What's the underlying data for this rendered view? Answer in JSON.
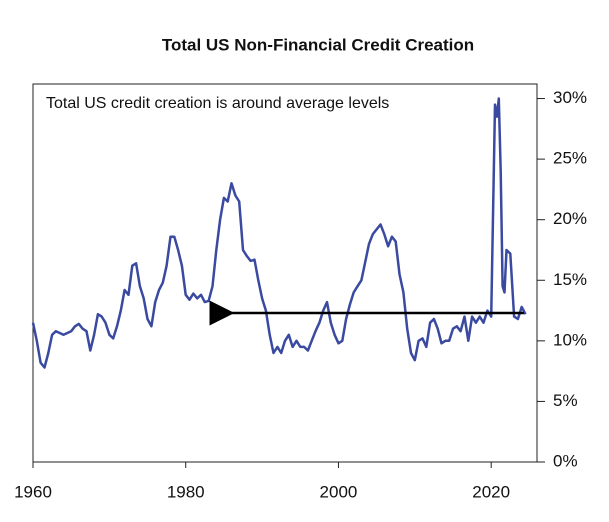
{
  "chart_data": {
    "type": "line",
    "title": "Total US Non-Financial Credit Creation",
    "annotation": "Total US credit creation is around average levels",
    "xlim": [
      1960,
      2026
    ],
    "xticks": [
      1960,
      1980,
      2000,
      2020
    ],
    "ylim": [
      0,
      31.2
    ],
    "yticks": [
      {
        "value": 0,
        "label": "0%"
      },
      {
        "value": 5,
        "label": "5%"
      },
      {
        "value": 10,
        "label": "10%"
      },
      {
        "value": 15,
        "label": "15%"
      },
      {
        "value": 20,
        "label": "20%"
      },
      {
        "value": 25,
        "label": "25%"
      },
      {
        "value": 30,
        "label": "30%"
      }
    ],
    "color": "#3a4aa0",
    "x": [
      1960,
      1960.5,
      1961,
      1961.5,
      1962,
      1962.5,
      1963,
      1964,
      1965,
      1965.5,
      1966,
      1966.5,
      1967,
      1967.5,
      1968,
      1968.5,
      1969,
      1969.5,
      1970,
      1970.5,
      1971,
      1971.5,
      1972,
      1972.5,
      1973,
      1973.5,
      1974,
      1974.5,
      1975,
      1975.5,
      1976,
      1976.5,
      1977,
      1977.5,
      1978,
      1978.5,
      1979,
      1979.5,
      1980,
      1980.5,
      1981,
      1981.5,
      1982,
      1982.5,
      1983,
      1983.5,
      1984,
      1984.5,
      1985,
      1985.5,
      1986,
      1986.5,
      1987,
      1987.5,
      1988,
      1988.5,
      1989,
      1989.5,
      1990,
      1990.5,
      1991,
      1991.5,
      1992,
      1992.5,
      1993,
      1993.5,
      1994,
      1994.5,
      1995,
      1995.5,
      1996,
      1996.5,
      1997,
      1997.5,
      1998,
      1998.5,
      1999,
      1999.5,
      2000,
      2000.5,
      2001,
      2001.5,
      2002,
      2002.5,
      2003,
      2003.5,
      2004,
      2004.5,
      2005,
      2005.5,
      2006,
      2006.5,
      2007,
      2007.5,
      2008,
      2008.5,
      2009,
      2009.5,
      2010,
      2010.5,
      2011,
      2011.5,
      2012,
      2012.5,
      2013,
      2013.5,
      2014,
      2014.5,
      2015,
      2015.5,
      2016,
      2016.5,
      2017,
      2017.5,
      2018,
      2018.5,
      2019,
      2019.5,
      2020,
      2020.5,
      2020.75,
      2021,
      2021.25,
      2021.5,
      2021.75,
      2022,
      2022.5,
      2023,
      2023.5,
      2024,
      2024.5
    ],
    "values": [
      11.5,
      10,
      8.2,
      7.8,
      9,
      10.5,
      10.8,
      10.5,
      10.8,
      11.2,
      11.4,
      11,
      10.8,
      9.2,
      10.5,
      12.2,
      12,
      11.5,
      10.5,
      10.2,
      11.2,
      12.5,
      14.2,
      13.8,
      16.2,
      16.4,
      14.5,
      13.5,
      11.8,
      11.2,
      13.2,
      14.2,
      14.8,
      16.2,
      18.6,
      18.6,
      17.5,
      16.2,
      13.8,
      13.4,
      13.9,
      13.5,
      13.8,
      13.2,
      13.3,
      14.5,
      17.5,
      20,
      21.8,
      21.5,
      23,
      22,
      21.5,
      17.5,
      17,
      16.6,
      16.7,
      15,
      13.5,
      12.5,
      10.5,
      9,
      9.5,
      9,
      10,
      10.5,
      9.5,
      10,
      9.5,
      9.5,
      9.2,
      10,
      10.8,
      11.5,
      12.5,
      13.2,
      11.5,
      10.5,
      9.8,
      10,
      11.8,
      13,
      14,
      14.5,
      15,
      16.5,
      18,
      18.8,
      19.2,
      19.6,
      18.8,
      17.8,
      18.6,
      18.2,
      15.5,
      14,
      11,
      9,
      8.4,
      10,
      10.2,
      9.5,
      11.5,
      11.8,
      11,
      9.8,
      10,
      10,
      11,
      11.2,
      10.8,
      12,
      10,
      12,
      11.5,
      12,
      11.5,
      12.5,
      12,
      29.5,
      28.5,
      30,
      24,
      14.5,
      14,
      17.5,
      17.2,
      12,
      11.8,
      12.8,
      12.2
    ]
  }
}
